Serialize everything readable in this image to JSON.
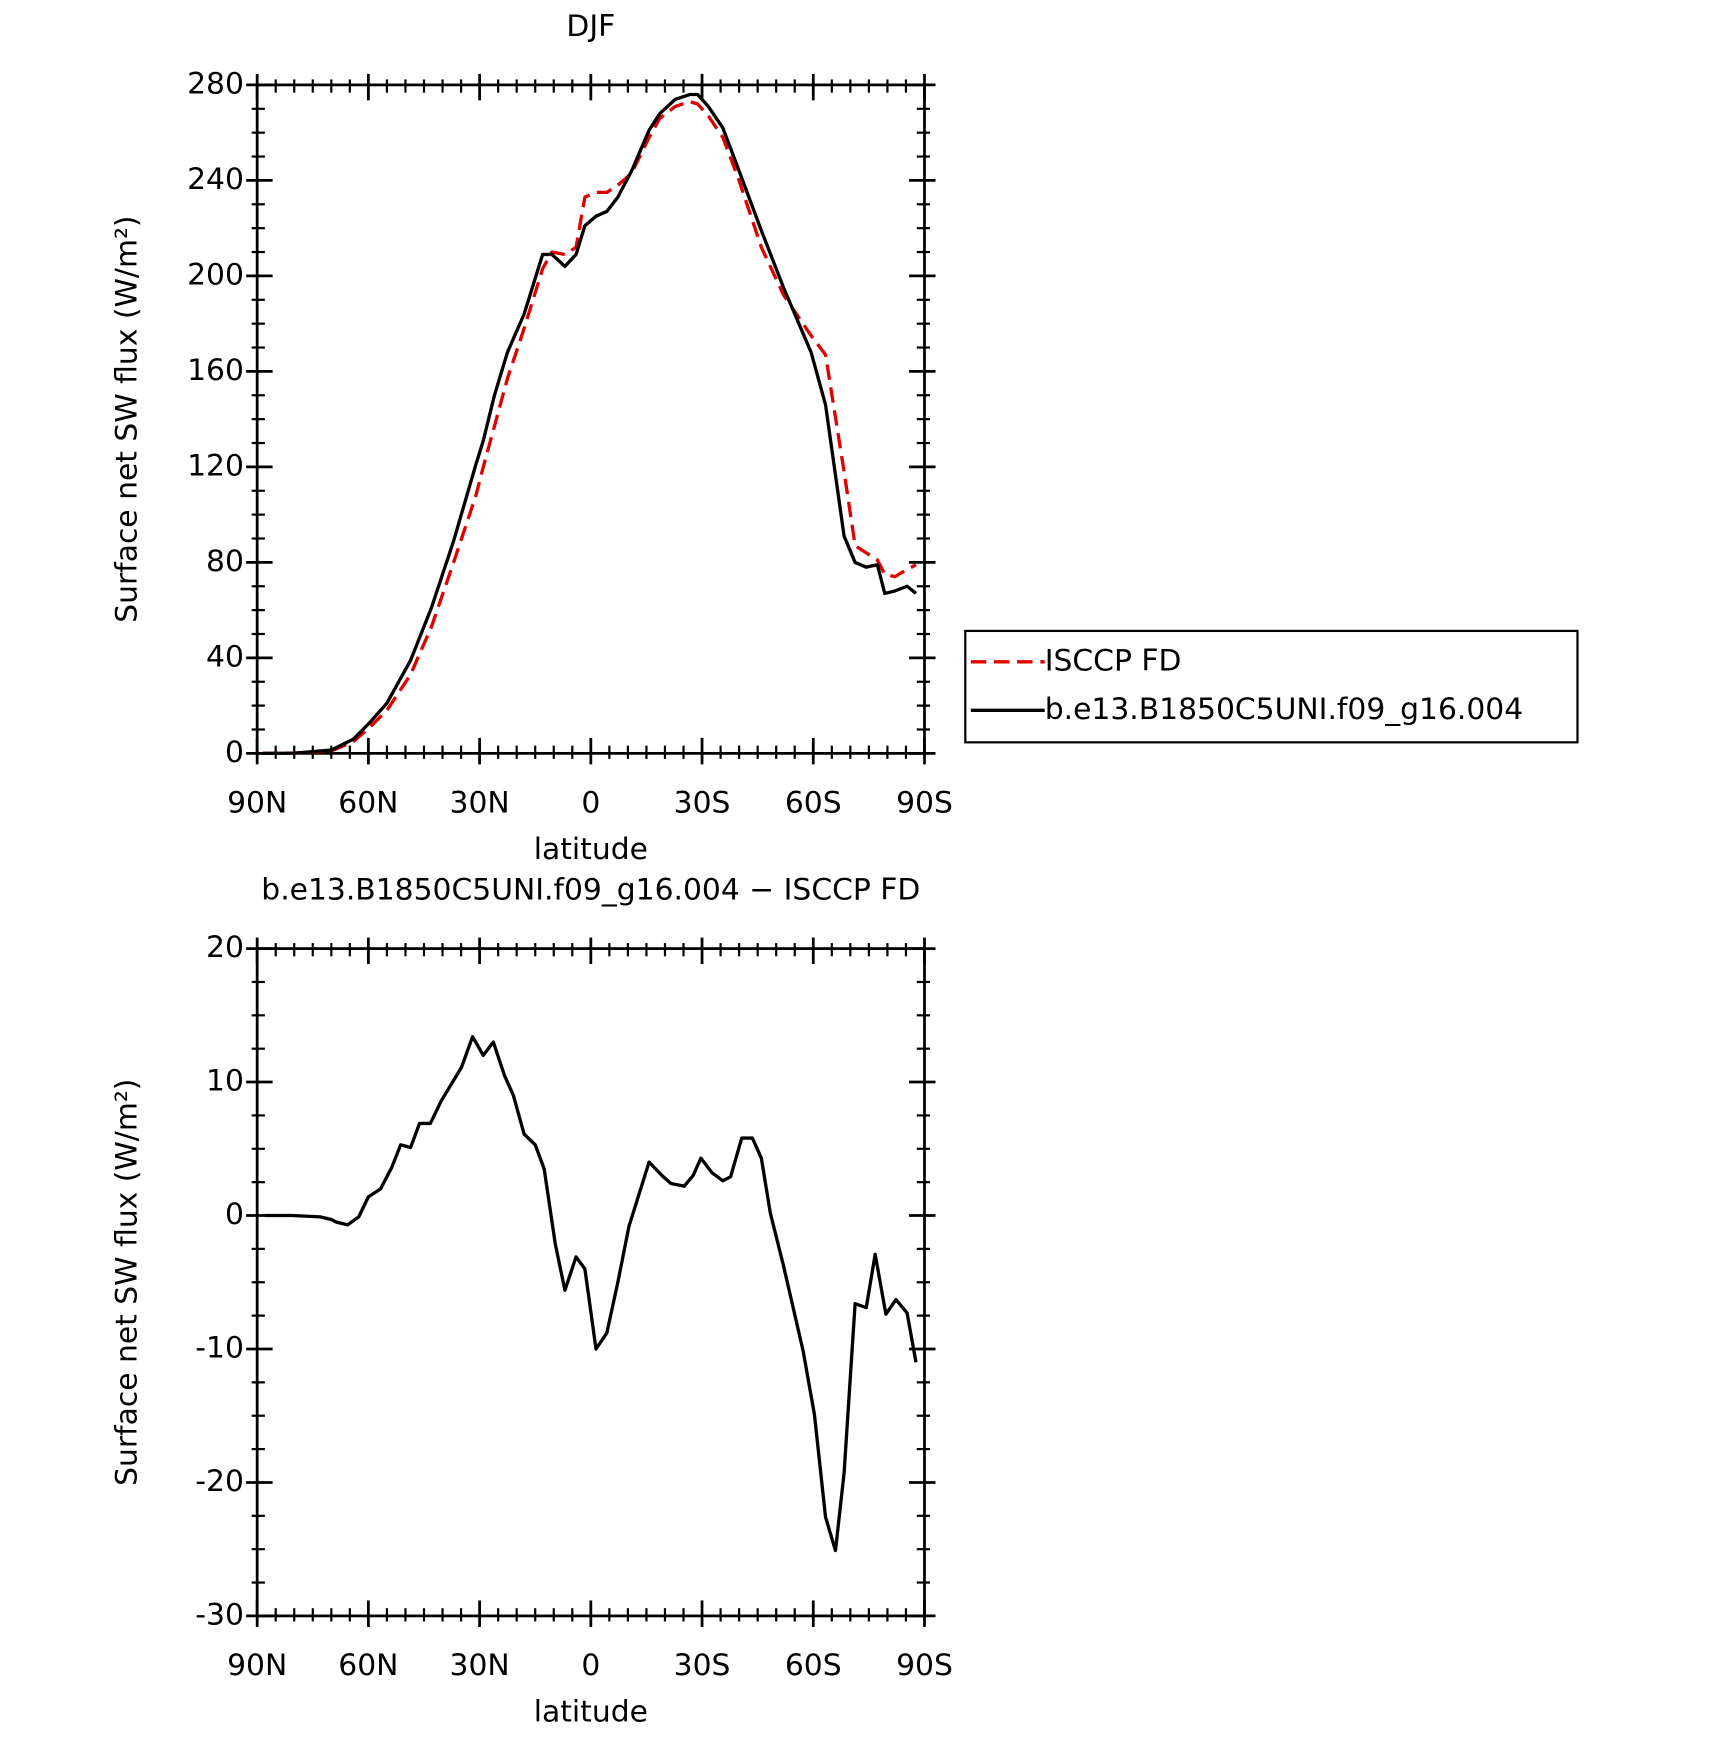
{
  "chart_data": [
    {
      "type": "line",
      "title": "DJF",
      "xlabel": "latitude",
      "ylabel": "Surface net SW flux (W/m²)",
      "x": [
        88.5,
        80,
        70,
        64,
        59.6,
        55,
        48.6,
        43,
        37,
        31,
        29,
        26,
        22.5,
        18,
        13,
        10.5,
        7,
        4,
        1.6,
        -1.4,
        -4.3,
        -7.3,
        -11,
        -15.7,
        -18.6,
        -22.8,
        -26.7,
        -28.8,
        -31.7,
        -35.6,
        -40,
        -46,
        -52,
        -59.4,
        -63.3,
        -68.3,
        -71.3,
        -74.3,
        -77.3,
        -79.3,
        -82,
        -85.3,
        -87.7
      ],
      "series": [
        {
          "name": "ISCCP FD",
          "color": "#e00000",
          "dash": true,
          "values": [
            0,
            0.1,
            1,
            5,
            11,
            18,
            33,
            53,
            80,
            108,
            120,
            137,
            157,
            178,
            203,
            210,
            209,
            212,
            233,
            235,
            235,
            238,
            243,
            258,
            266,
            271,
            273,
            272,
            267,
            258,
            240,
            212,
            192,
            175,
            167,
            118,
            87,
            84,
            81,
            75,
            74,
            77,
            79
          ]
        },
        {
          "name": "b.e13.B1850C5UNI.f09_g16.004",
          "color": "#000000",
          "dash": false,
          "values": [
            0,
            0.1,
            1.4,
            6,
            13,
            21,
            39,
            61,
            89,
            121,
            131,
            150,
            168,
            184,
            209,
            209,
            204,
            209,
            221,
            225,
            227,
            233,
            244,
            261,
            268,
            274,
            276,
            276,
            271,
            262,
            244,
            219,
            195,
            168,
            146,
            91,
            80,
            78,
            79,
            67,
            68,
            70,
            67
          ]
        }
      ],
      "xlim": [
        90,
        -90
      ],
      "xticks": [
        {
          "value": 90,
          "label": "90N"
        },
        {
          "value": 60,
          "label": "60N"
        },
        {
          "value": 30,
          "label": "30N"
        },
        0,
        {
          "value": -30,
          "label": "30S"
        },
        {
          "value": -60,
          "label": "60S"
        },
        {
          "value": -90,
          "label": "90S"
        }
      ],
      "ylim": [
        0,
        280
      ],
      "yticks": [
        0,
        40,
        80,
        120,
        160,
        200,
        240,
        280
      ],
      "legend": "outside-right"
    },
    {
      "type": "line",
      "title": "b.e13.B1850C5UNI.f09_g16.004 − ISCCP FD",
      "xlabel": "latitude",
      "ylabel": "Surface net SW flux (W/m²)",
      "x": [
        88,
        80.5,
        73,
        70,
        68.6,
        65.6,
        62.6,
        60,
        56.7,
        53.7,
        51.3,
        48.6,
        46.2,
        43.3,
        40.3,
        34.9,
        31.9,
        29,
        26.3,
        23.3,
        20.9,
        18,
        15,
        12.6,
        9.6,
        7,
        4,
        1.6,
        -1.4,
        -4.3,
        -7.3,
        -10.3,
        -15.7,
        -19.2,
        -21.6,
        -25.2,
        -27.6,
        -29.7,
        -32.7,
        -35.6,
        -37.7,
        -40.7,
        -43.6,
        -46,
        -48.4,
        -52,
        -57.3,
        -60.3,
        -63.3,
        -66,
        -68.3,
        -71.3,
        -74.3,
        -76.7,
        -79.6,
        -82.3,
        -85.3,
        -87.7
      ],
      "values": [
        0,
        0,
        -0.1,
        -0.3,
        -0.5,
        -0.7,
        -0.1,
        1.4,
        2,
        3.6,
        5.3,
        5.1,
        6.9,
        6.9,
        8.6,
        11.1,
        13.4,
        12,
        13,
        10.5,
        9,
        6.1,
        5.3,
        3.5,
        -2.1,
        -5.6,
        -3.1,
        -4,
        -10,
        -8.8,
        -5,
        -0.8,
        4,
        3,
        2.4,
        2.2,
        3,
        4.3,
        3.2,
        2.6,
        2.9,
        5.8,
        5.8,
        4.3,
        0.2,
        -3.8,
        -10.2,
        -14.9,
        -22.6,
        -25.1,
        -19.3,
        -6.6,
        -6.9,
        -2.9,
        -7.4,
        -6.3,
        -7.3,
        -11
      ],
      "color": "#000000",
      "xlim": [
        90,
        -90
      ],
      "xticks": [
        {
          "value": 90,
          "label": "90N"
        },
        {
          "value": 60,
          "label": "60N"
        },
        {
          "value": 30,
          "label": "30N"
        },
        0,
        {
          "value": -30,
          "label": "30S"
        },
        {
          "value": -60,
          "label": "60S"
        },
        {
          "value": -90,
          "label": "90S"
        }
      ],
      "ylim": [
        -30,
        20
      ],
      "yticks": [
        -30,
        -20,
        -10,
        0,
        10,
        20
      ]
    }
  ]
}
